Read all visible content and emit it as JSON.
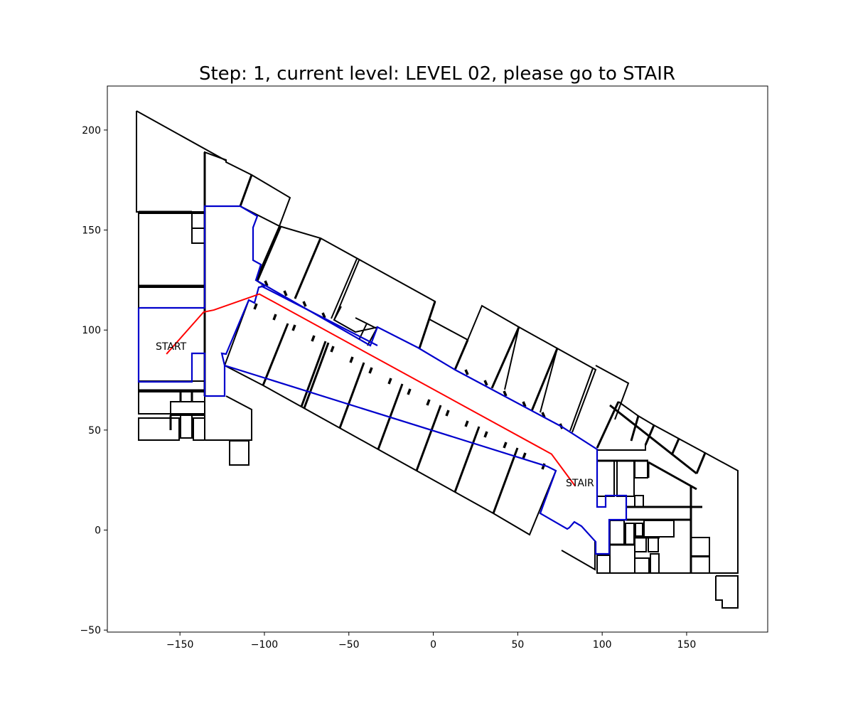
{
  "title": "Step: 1, current level:  LEVEL 02, please go to STAIR",
  "axes": {
    "x_ticks": [
      -150,
      -100,
      -50,
      0,
      50,
      100,
      150
    ],
    "y_ticks": [
      -50,
      0,
      50,
      100,
      150,
      200
    ],
    "xlim": [
      -193,
      198
    ],
    "ylim": [
      -51,
      222
    ]
  },
  "labels": {
    "start": "START",
    "goal": "STAIR"
  },
  "route": {
    "color": "#ff0000",
    "points": [
      [
        -158,
        88
      ],
      [
        -136,
        109
      ],
      [
        -130,
        110
      ],
      [
        -103,
        118
      ],
      [
        70,
        38
      ],
      [
        84,
        22
      ]
    ]
  },
  "colors": {
    "route": "#ff0000",
    "walkable_area": "#0000cc",
    "rooms": "#000000"
  }
}
